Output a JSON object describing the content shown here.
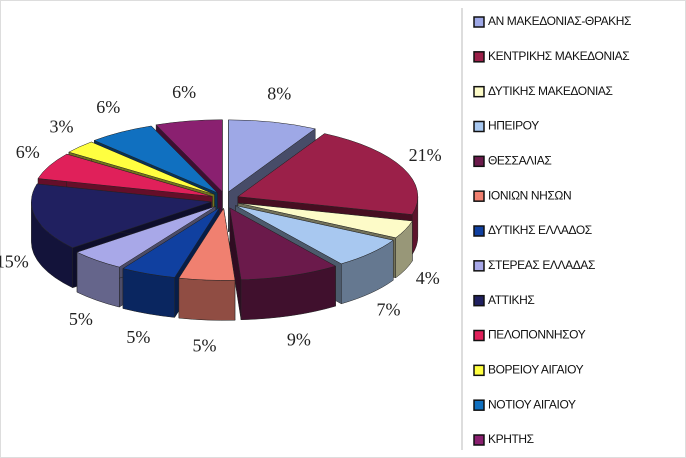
{
  "chart_data": {
    "type": "pie3d",
    "categories": [
      "ΑΝ ΜΑΚΕΔΟΝΙΑΣ-ΘΡΑΚΗΣ",
      "ΚΕΝΤΡΙΚΗΣ ΜΑΚΕΔΟΝΙΑΣ",
      "ΔΥΤΙΚΗΣ ΜΑΚΕΔΟΝΙΑΣ",
      "ΗΠΕΙΡΟΥ",
      "ΘΕΣΣΑΛΙΑΣ",
      "ΙΟΝΙΩΝ ΝΗΣΩΝ",
      "ΔΥΤΙΚΗΣ ΕΛΛΑΔΟΣ",
      "ΣΤΕΡΕΑΣ ΕΛΛΑΔΑΣ",
      "ΑΤΤΙΚΗΣ",
      "ΠΕΛΟΠΟΝΝΗΣΟΥ",
      "ΒΟΡΕΙΟΥ ΑΙΓΑΙΟΥ",
      "ΝΟΤΙΟΥ ΑΙΓΑΙΟΥ",
      "ΚΡΗΤΗΣ"
    ],
    "values": [
      8,
      21,
      4,
      7,
      9,
      5,
      5,
      5,
      15,
      6,
      3,
      6,
      6
    ],
    "value_labels": [
      "8%",
      "21%",
      "4%",
      "7%",
      "9%",
      "5%",
      "5%",
      "5%",
      "15%",
      "6%",
      "3%",
      "6%",
      "6%"
    ],
    "colors": [
      "#9ea8e6",
      "#9b2049",
      "#fdfbc8",
      "#a8c8f0",
      "#6b1a4b",
      "#f08070",
      "#1040a0",
      "#a8a8e8",
      "#202060",
      "#e0205a",
      "#ffff40",
      "#1070c0",
      "#8a2070"
    ],
    "legend": "right"
  }
}
